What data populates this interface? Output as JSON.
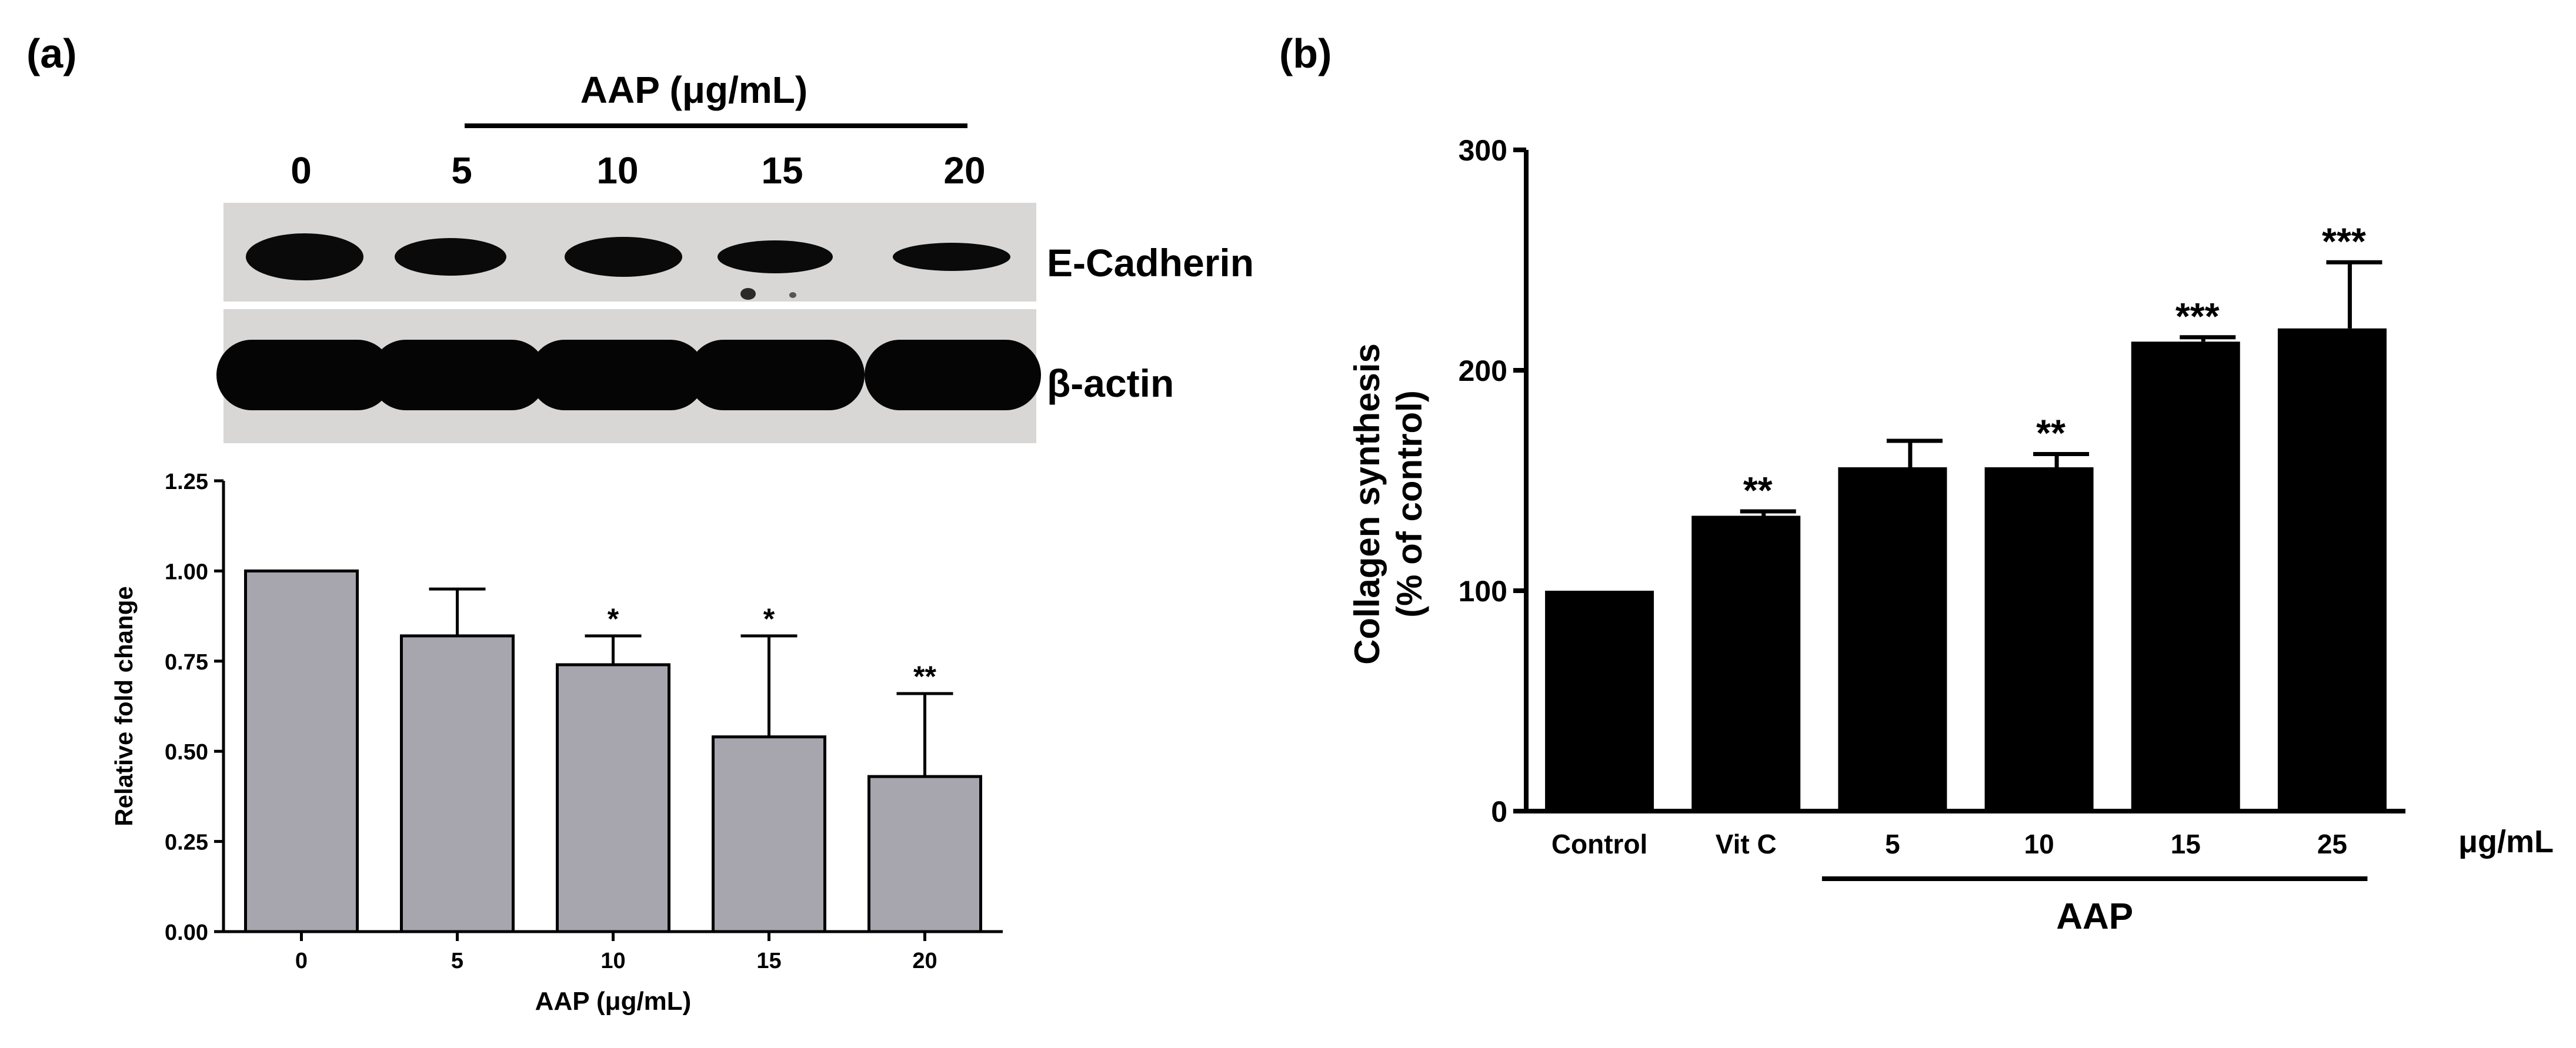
{
  "panel_a": {
    "label": "(a)",
    "blot": {
      "group_label": "AAP (μg/mL)",
      "lane_labels": [
        "0",
        "5",
        "10",
        "15",
        "20"
      ],
      "row_labels": [
        "E-Cadherin",
        "β-actin"
      ]
    }
  },
  "panel_b": {
    "label": "(b)"
  },
  "chart_data": [
    {
      "type": "bar",
      "categories": [
        "0",
        "5",
        "10",
        "15",
        "20"
      ],
      "series": [
        {
          "values": [
            1.0,
            0.82,
            0.74,
            0.54,
            0.43
          ]
        }
      ],
      "errors": [
        0,
        0.13,
        0.08,
        0.28,
        0.23
      ],
      "significance": [
        "",
        "",
        "*",
        "*",
        "**"
      ],
      "xlabel": "AAP (μg/mL)",
      "ylabel": "Relative fold change",
      "ylim": [
        0,
        1.25
      ],
      "yticks": [
        "0.00",
        "0.25",
        "0.50",
        "0.75",
        "1.00",
        "1.25"
      ],
      "bar_color": "#a7a5ad",
      "grid": false
    },
    {
      "type": "bar",
      "categories": [
        "Control",
        "Vit C",
        "5",
        "10",
        "15",
        "25"
      ],
      "series": [
        {
          "values": [
            100,
            134,
            156,
            156,
            213,
            219
          ]
        }
      ],
      "errors": [
        0,
        2,
        12,
        6,
        2,
        30
      ],
      "significance": [
        "",
        "**",
        "",
        "**",
        "***",
        "***"
      ],
      "unit_label": "μg/mL",
      "group_label": "AAP",
      "ylabel_lines": [
        "Collagen synthesis",
        "(% of control)"
      ],
      "ylim": [
        0,
        300
      ],
      "yticks": [
        "0",
        "100",
        "200",
        "300"
      ],
      "bar_color": "#000000",
      "grid": false
    }
  ]
}
